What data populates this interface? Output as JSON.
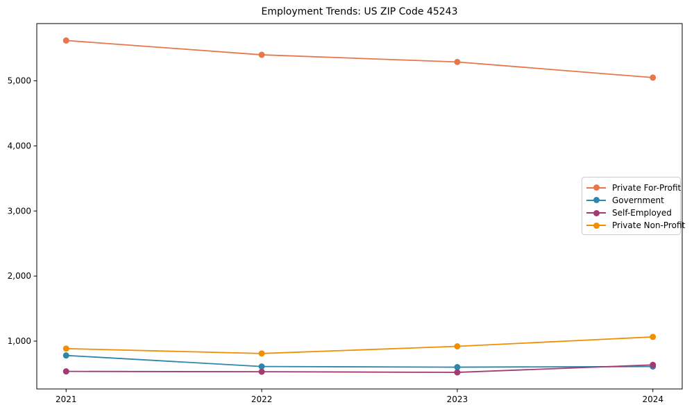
{
  "figure": {
    "background_color": "#ffffff",
    "axes_box_color": "#000000"
  },
  "chart_data": {
    "type": "line",
    "title": "Employment Trends: US ZIP Code 45243",
    "xlabel": "",
    "ylabel": "",
    "x": [
      2021,
      2022,
      2023,
      2024
    ],
    "xtick_labels": [
      "2021",
      "2022",
      "2023",
      "2024"
    ],
    "yticks": [
      1000,
      2000,
      3000,
      4000,
      5000
    ],
    "ytick_labels": [
      "1,000",
      "2,000",
      "3,000",
      "4,000",
      "5,000"
    ],
    "xlim": [
      2020.85,
      2024.15
    ],
    "ylim": [
      265,
      5880
    ],
    "grid": false,
    "legend_position": "center-right",
    "series": [
      {
        "name": "Private For-Profit",
        "color": "#E8764B",
        "values": [
          5620,
          5400,
          5290,
          5050
        ]
      },
      {
        "name": "Government",
        "color": "#2E86AB",
        "values": [
          780,
          610,
          600,
          610
        ]
      },
      {
        "name": "Self-Employed",
        "color": "#A23B72",
        "values": [
          535,
          530,
          520,
          635
        ]
      },
      {
        "name": "Private Non-Profit",
        "color": "#F18F01",
        "values": [
          885,
          810,
          920,
          1065
        ]
      }
    ]
  }
}
